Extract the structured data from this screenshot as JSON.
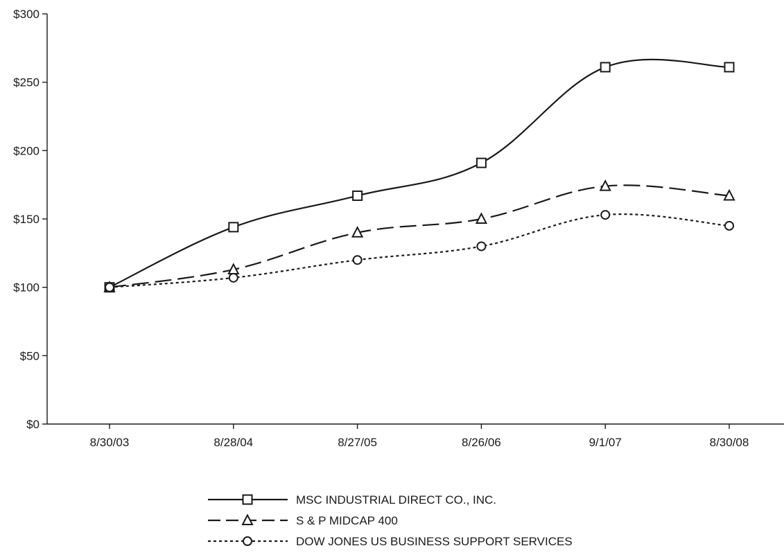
{
  "chart_data": {
    "type": "line",
    "title": "",
    "xlabel": "",
    "ylabel": "",
    "categories": [
      "8/30/03",
      "8/28/04",
      "8/27/05",
      "8/26/06",
      "9/1/07",
      "8/30/08"
    ],
    "ylim": [
      0,
      300
    ],
    "y_ticks": [
      0,
      50,
      100,
      150,
      200,
      250,
      300
    ],
    "y_tick_labels": [
      "$0",
      "$50",
      "$100",
      "$150",
      "$200",
      "$250",
      "$300"
    ],
    "grid": false,
    "legend_position": "bottom-center",
    "series": [
      {
        "name": "MSC INDUSTRIAL DIRECT CO., INC.",
        "values": [
          100,
          144,
          167,
          191,
          261,
          261
        ],
        "line_style": "solid",
        "marker": "square"
      },
      {
        "name": "S & P MIDCAP 400",
        "values": [
          100,
          113,
          140,
          150,
          174,
          167
        ],
        "line_style": "dashed",
        "marker": "triangle"
      },
      {
        "name": "DOW JONES US BUSINESS SUPPORT SERVICES",
        "values": [
          100,
          107,
          120,
          130,
          153,
          145
        ],
        "line_style": "dotted",
        "marker": "circle"
      }
    ]
  },
  "colors": {
    "ink": "#1a1a1a",
    "background": "#ffffff"
  }
}
